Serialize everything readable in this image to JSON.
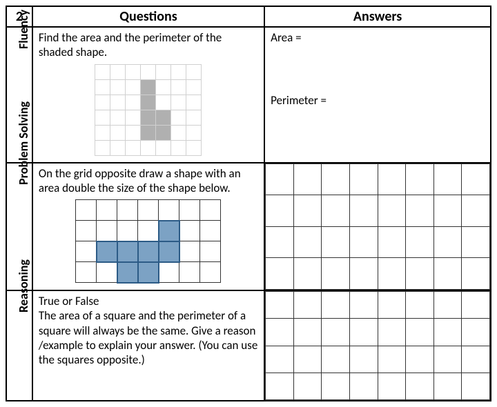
{
  "header": {
    "number": "2",
    "questions_label": "Questions",
    "answers_label": "Answers"
  },
  "rows": {
    "fluency": {
      "label": "Fluency",
      "question": "Find the area and the perimeter of the shaded shape.",
      "answer_area_label": "Area =",
      "answer_perimeter_label": "Perimeter =",
      "figure": {
        "type": "grid-shape",
        "grid_cols": 7,
        "grid_rows": 6,
        "cell_size_px": 22,
        "grid_line_color": "#d0d0d0",
        "shaded_color": "#b0b0b0",
        "shaded_cells": [
          [
            1,
            3
          ],
          [
            2,
            3
          ],
          [
            3,
            3
          ],
          [
            3,
            4
          ],
          [
            4,
            3
          ],
          [
            4,
            4
          ]
        ]
      }
    },
    "problem_solving": {
      "label": "Problem Solving",
      "question": "On the grid opposite draw a shape with an area double the size of the shape below.",
      "figure": {
        "type": "grid-shape",
        "grid_cols": 7,
        "grid_rows": 4,
        "cell_size_px": 30,
        "grid_line_color": "#333333",
        "shaded_fill": "#7ca2c4",
        "shaded_border": "#2c5b86",
        "shaded_cells": [
          [
            1,
            4
          ],
          [
            2,
            1
          ],
          [
            2,
            2
          ],
          [
            2,
            3
          ],
          [
            2,
            4
          ],
          [
            3,
            2
          ],
          [
            3,
            3
          ]
        ]
      },
      "answer_grid": {
        "rows": 4,
        "cols": 8,
        "line_color": "#333333"
      }
    },
    "reasoning": {
      "label": "Reasoning",
      "question": "True or False\nThe area of a square and the perimeter of a square will always be the same. Give a reason /example to explain your answer. (You can use the squares opposite.)",
      "answer_grid": {
        "rows": 4,
        "cols": 8,
        "line_color": "#333333"
      }
    }
  },
  "typography": {
    "body_font": "Calibri",
    "body_size_pt": 13,
    "header_size_pt": 15,
    "label_size_pt": 14
  },
  "colors": {
    "page_bg": "#ffffff",
    "border": "#000000",
    "grey_fill": "#b0b0b0",
    "blue_fill": "#7ca2c4",
    "blue_border": "#2c5b86",
    "light_grid": "#d0d0d0",
    "dark_grid": "#333333"
  }
}
